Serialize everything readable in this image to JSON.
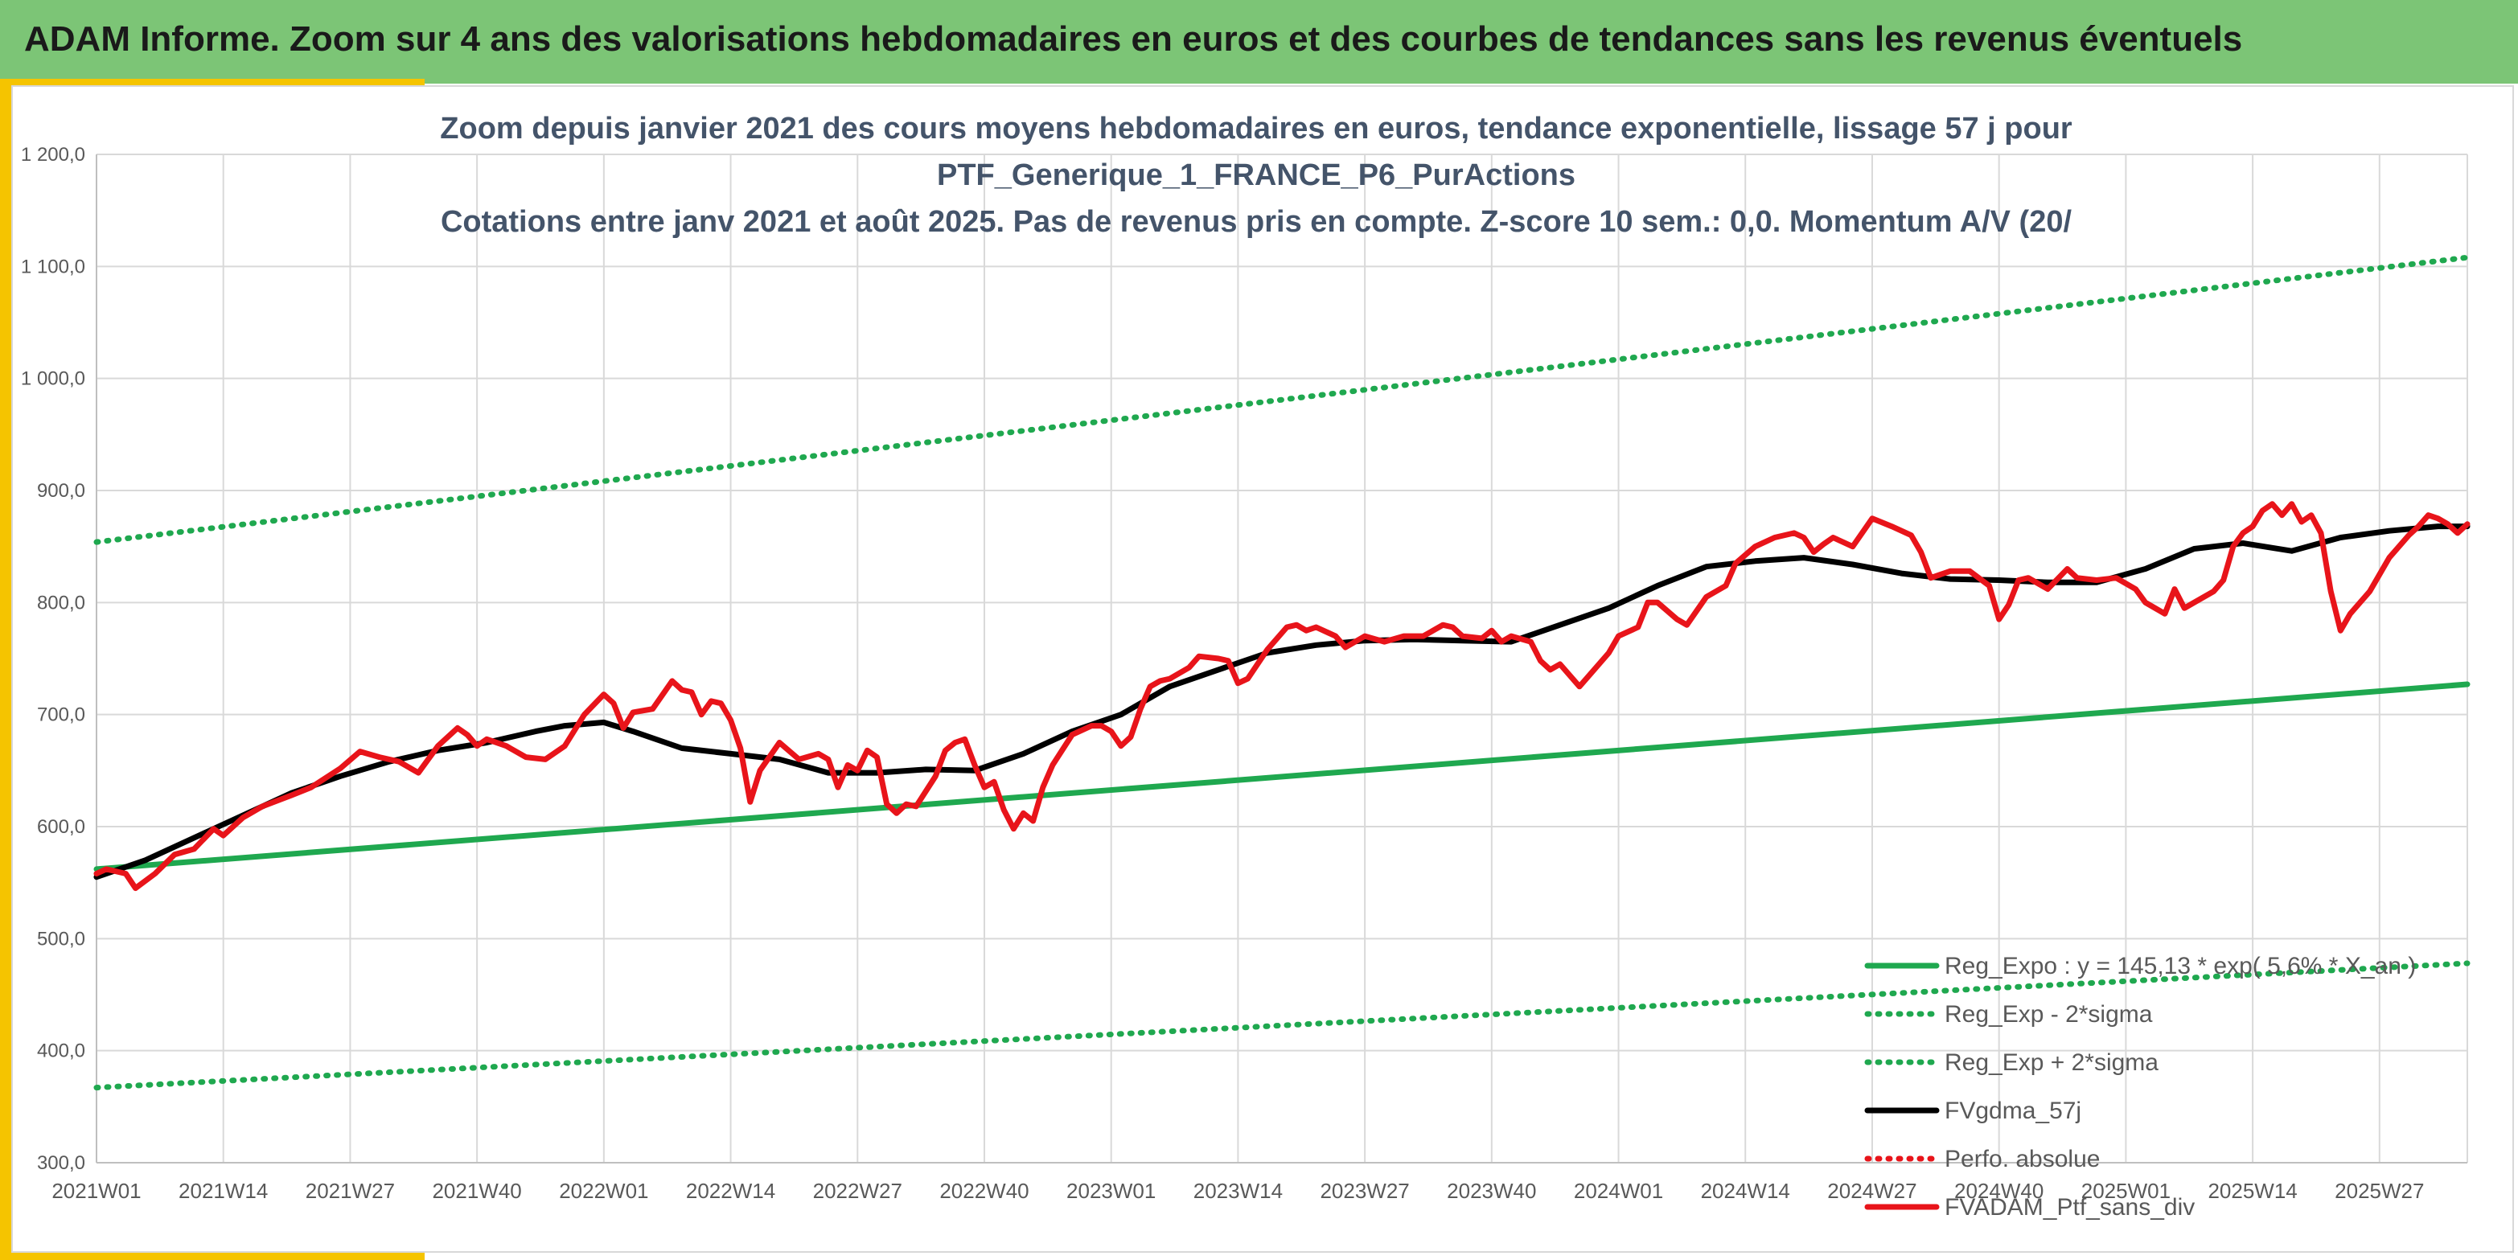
{
  "banner": {
    "title": "ADAM Informe. Zoom sur 4 ans des valorisations hebdomadaires en euros et des courbes de tendances sans les revenus éventuels"
  },
  "colors": {
    "banner": "#7cc576",
    "accent": "#f5c400",
    "trend": "#1fa84f",
    "smoothed": "#000000",
    "price": "#e8141a",
    "title": "#44546a",
    "grid": "#d9d9d9"
  },
  "chart_data": {
    "type": "line",
    "title_lines": [
      "Zoom depuis janvier 2021 des cours moyens hebdomadaires en euros, tendance exponentielle, lissage 57 j pour",
      "PTF_Generique_1_FRANCE_P6_PurActions",
      "Cotations entre janv 2021 et août 2025. Pas de revenus pris en compte. Z-score 10 sem.: 0,0. Momentum A/V (20/"
    ],
    "x_ticks": [
      "2021W01",
      "2021W14",
      "2021W27",
      "2021W40",
      "2022W01",
      "2022W14",
      "2022W27",
      "2022W40",
      "2023W01",
      "2023W14",
      "2023W27",
      "2023W40",
      "2024W01",
      "2024W14",
      "2024W27",
      "2024W40",
      "2025W01",
      "2025W14",
      "2025W27"
    ],
    "x_tick_weeks": [
      0,
      13,
      26,
      39,
      52,
      65,
      78,
      91,
      104,
      117,
      130,
      143,
      156,
      169,
      182,
      195,
      208,
      221,
      234
    ],
    "x_range_weeks": [
      0,
      243
    ],
    "y_ticks": [
      "300,0",
      "400,0",
      "500,0",
      "600,0",
      "700,0",
      "800,0",
      "900,0",
      "1 000,0",
      "1 100,0",
      "1 200,0"
    ],
    "ylim": [
      300,
      1200
    ],
    "grid": "horizontal and vertical",
    "legend_position": "bottom-right",
    "series": [
      {
        "name": "Reg_Expo : y = 145,13 * exp( 5,6% *  X_an )",
        "color": "#1fa84f",
        "style": "solid",
        "points": [
          [
            0,
            562
          ],
          [
            243,
            727
          ]
        ]
      },
      {
        "name": "Reg_Exp - 2*sigma",
        "color": "#1fa84f",
        "style": "dotted",
        "points": [
          [
            0,
            367
          ],
          [
            243,
            478
          ]
        ]
      },
      {
        "name": "Reg_Exp + 2*sigma",
        "color": "#1fa84f",
        "style": "dotted",
        "points": [
          [
            0,
            854
          ],
          [
            243,
            1108
          ]
        ]
      },
      {
        "name": "FVgdma_57j",
        "color": "#000000",
        "style": "solid",
        "points": [
          [
            0,
            555
          ],
          [
            5,
            570
          ],
          [
            10,
            590
          ],
          [
            15,
            610
          ],
          [
            20,
            630
          ],
          [
            25,
            645
          ],
          [
            30,
            658
          ],
          [
            35,
            668
          ],
          [
            40,
            675
          ],
          [
            45,
            685
          ],
          [
            48,
            690
          ],
          [
            52,
            693
          ],
          [
            55,
            685
          ],
          [
            60,
            670
          ],
          [
            65,
            665
          ],
          [
            70,
            660
          ],
          [
            75,
            648
          ],
          [
            80,
            648
          ],
          [
            85,
            651
          ],
          [
            90,
            650
          ],
          [
            95,
            665
          ],
          [
            100,
            685
          ],
          [
            105,
            700
          ],
          [
            110,
            725
          ],
          [
            115,
            740
          ],
          [
            120,
            755
          ],
          [
            125,
            762
          ],
          [
            130,
            766
          ],
          [
            135,
            767
          ],
          [
            140,
            766
          ],
          [
            145,
            765
          ],
          [
            150,
            780
          ],
          [
            155,
            795
          ],
          [
            160,
            815
          ],
          [
            165,
            832
          ],
          [
            170,
            837
          ],
          [
            175,
            840
          ],
          [
            180,
            834
          ],
          [
            185,
            826
          ],
          [
            190,
            821
          ],
          [
            195,
            820
          ],
          [
            200,
            818
          ],
          [
            205,
            818
          ],
          [
            210,
            830
          ],
          [
            215,
            848
          ],
          [
            220,
            853
          ],
          [
            225,
            846
          ],
          [
            230,
            858
          ],
          [
            235,
            864
          ],
          [
            240,
            868
          ],
          [
            243,
            868
          ]
        ]
      },
      {
        "name": "Perfo. absolue",
        "color": "#e8141a",
        "style": "dotted",
        "points": []
      },
      {
        "name": "FVADAM_Ptf_sans_div",
        "color": "#e8141a",
        "style": "solid",
        "points": [
          [
            0,
            558
          ],
          [
            1,
            562
          ],
          [
            3,
            558
          ],
          [
            4,
            545
          ],
          [
            6,
            558
          ],
          [
            8,
            575
          ],
          [
            10,
            580
          ],
          [
            12,
            598
          ],
          [
            13,
            592
          ],
          [
            15,
            608
          ],
          [
            17,
            618
          ],
          [
            20,
            628
          ],
          [
            22,
            635
          ],
          [
            25,
            652
          ],
          [
            27,
            667
          ],
          [
            29,
            662
          ],
          [
            31,
            658
          ],
          [
            33,
            648
          ],
          [
            35,
            672
          ],
          [
            37,
            688
          ],
          [
            38,
            682
          ],
          [
            39,
            672
          ],
          [
            40,
            678
          ],
          [
            42,
            672
          ],
          [
            44,
            662
          ],
          [
            46,
            660
          ],
          [
            48,
            672
          ],
          [
            50,
            700
          ],
          [
            52,
            718
          ],
          [
            53,
            710
          ],
          [
            54,
            688
          ],
          [
            55,
            702
          ],
          [
            57,
            705
          ],
          [
            59,
            730
          ],
          [
            60,
            722
          ],
          [
            61,
            720
          ],
          [
            62,
            700
          ],
          [
            63,
            712
          ],
          [
            64,
            710
          ],
          [
            65,
            695
          ],
          [
            66,
            670
          ],
          [
            67,
            622
          ],
          [
            68,
            650
          ],
          [
            70,
            675
          ],
          [
            72,
            660
          ],
          [
            74,
            665
          ],
          [
            75,
            660
          ],
          [
            76,
            635
          ],
          [
            77,
            655
          ],
          [
            78,
            650
          ],
          [
            79,
            668
          ],
          [
            80,
            662
          ],
          [
            81,
            620
          ],
          [
            82,
            612
          ],
          [
            83,
            620
          ],
          [
            84,
            618
          ],
          [
            86,
            645
          ],
          [
            87,
            668
          ],
          [
            88,
            675
          ],
          [
            89,
            678
          ],
          [
            90,
            655
          ],
          [
            91,
            635
          ],
          [
            92,
            640
          ],
          [
            93,
            615
          ],
          [
            94,
            598
          ],
          [
            95,
            612
          ],
          [
            96,
            605
          ],
          [
            97,
            635
          ],
          [
            98,
            655
          ],
          [
            100,
            682
          ],
          [
            102,
            690
          ],
          [
            103,
            690
          ],
          [
            104,
            685
          ],
          [
            105,
            672
          ],
          [
            106,
            680
          ],
          [
            107,
            705
          ],
          [
            108,
            725
          ],
          [
            109,
            730
          ],
          [
            110,
            732
          ],
          [
            112,
            742
          ],
          [
            113,
            752
          ],
          [
            115,
            750
          ],
          [
            116,
            748
          ],
          [
            117,
            728
          ],
          [
            118,
            732
          ],
          [
            120,
            758
          ],
          [
            122,
            778
          ],
          [
            123,
            780
          ],
          [
            124,
            775
          ],
          [
            125,
            778
          ],
          [
            127,
            770
          ],
          [
            128,
            760
          ],
          [
            130,
            770
          ],
          [
            132,
            765
          ],
          [
            134,
            770
          ],
          [
            136,
            770
          ],
          [
            138,
            780
          ],
          [
            139,
            778
          ],
          [
            140,
            770
          ],
          [
            142,
            768
          ],
          [
            143,
            775
          ],
          [
            144,
            765
          ],
          [
            145,
            770
          ],
          [
            147,
            765
          ],
          [
            148,
            748
          ],
          [
            149,
            740
          ],
          [
            150,
            745
          ],
          [
            152,
            725
          ],
          [
            153,
            735
          ],
          [
            155,
            755
          ],
          [
            156,
            770
          ],
          [
            158,
            778
          ],
          [
            159,
            800
          ],
          [
            160,
            800
          ],
          [
            162,
            785
          ],
          [
            163,
            780
          ],
          [
            165,
            805
          ],
          [
            167,
            815
          ],
          [
            168,
            835
          ],
          [
            170,
            850
          ],
          [
            172,
            858
          ],
          [
            174,
            862
          ],
          [
            175,
            858
          ],
          [
            176,
            845
          ],
          [
            177,
            852
          ],
          [
            178,
            858
          ],
          [
            180,
            850
          ],
          [
            182,
            875
          ],
          [
            184,
            868
          ],
          [
            186,
            860
          ],
          [
            187,
            845
          ],
          [
            188,
            822
          ],
          [
            190,
            828
          ],
          [
            192,
            828
          ],
          [
            194,
            815
          ],
          [
            195,
            785
          ],
          [
            196,
            798
          ],
          [
            197,
            820
          ],
          [
            198,
            822
          ],
          [
            200,
            812
          ],
          [
            202,
            830
          ],
          [
            203,
            822
          ],
          [
            205,
            820
          ],
          [
            207,
            822
          ],
          [
            209,
            812
          ],
          [
            210,
            800
          ],
          [
            211,
            795
          ],
          [
            212,
            790
          ],
          [
            213,
            812
          ],
          [
            214,
            795
          ],
          [
            215,
            800
          ],
          [
            217,
            810
          ],
          [
            218,
            820
          ],
          [
            219,
            850
          ],
          [
            220,
            862
          ],
          [
            221,
            868
          ],
          [
            222,
            882
          ],
          [
            223,
            888
          ],
          [
            224,
            878
          ],
          [
            225,
            888
          ],
          [
            226,
            872
          ],
          [
            227,
            878
          ],
          [
            228,
            862
          ],
          [
            229,
            810
          ],
          [
            230,
            775
          ],
          [
            231,
            790
          ],
          [
            233,
            810
          ],
          [
            235,
            840
          ],
          [
            237,
            860
          ],
          [
            238,
            868
          ],
          [
            239,
            878
          ],
          [
            240,
            875
          ],
          [
            241,
            870
          ],
          [
            242,
            862
          ],
          [
            243,
            870
          ]
        ]
      }
    ]
  }
}
